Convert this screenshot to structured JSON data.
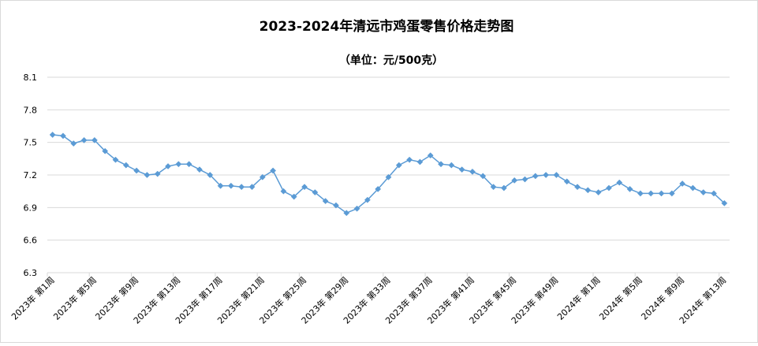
{
  "chart_data": {
    "type": "line",
    "title": "2023-2024年清远市鸡蛋零售价格走势图",
    "subtitle": "（单位：元/500克）",
    "xlabel": "",
    "ylabel": "",
    "ylim": [
      6.3,
      8.1
    ],
    "yticks": [
      "6.3",
      "6.6",
      "6.9",
      "7.2",
      "7.5",
      "7.8",
      "8.1"
    ],
    "grid": true,
    "legend": "none",
    "colors": {
      "line": "#5B9BD5",
      "grid": "#D9D9D9",
      "text": "#000000"
    },
    "x_labels": [
      "2023年 第1周",
      "2023年 第5周",
      "2023年 第9周",
      "2023年 第13周",
      "2023年 第17周",
      "2023年 第21周",
      "2023年 第25周",
      "2023年 第29周",
      "2023年 第33周",
      "2023年 第37周",
      "2023年 第41周",
      "2023年 第45周",
      "2023年 第49周",
      "2024年 第1周",
      "2024年 第5周",
      "2024年 第9周",
      "2024年 第13周"
    ],
    "x_label_every": 4,
    "values": [
      7.57,
      7.56,
      7.49,
      7.52,
      7.52,
      7.42,
      7.34,
      7.29,
      7.24,
      7.2,
      7.21,
      7.28,
      7.3,
      7.3,
      7.25,
      7.2,
      7.1,
      7.1,
      7.09,
      7.09,
      7.18,
      7.24,
      7.05,
      7.0,
      7.09,
      7.04,
      6.96,
      6.92,
      6.85,
      6.89,
      6.97,
      7.07,
      7.18,
      7.29,
      7.34,
      7.32,
      7.38,
      7.3,
      7.29,
      7.25,
      7.23,
      7.19,
      7.09,
      7.08,
      7.15,
      7.16,
      7.19,
      7.2,
      7.2,
      7.14,
      7.09,
      7.06,
      7.04,
      7.08,
      7.13,
      7.07,
      7.03,
      7.03,
      7.03,
      7.03,
      7.12,
      7.08,
      7.04,
      7.03,
      6.94
    ]
  }
}
